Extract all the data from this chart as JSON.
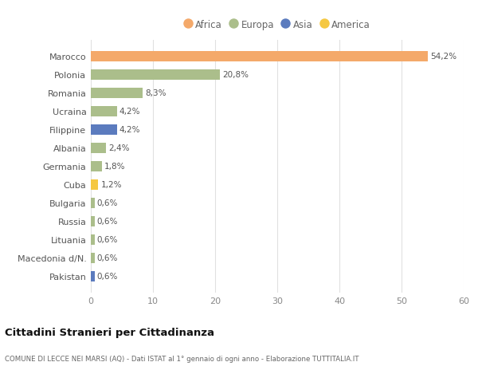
{
  "countries": [
    "Marocco",
    "Polonia",
    "Romania",
    "Ucraina",
    "Filippine",
    "Albania",
    "Germania",
    "Cuba",
    "Bulgaria",
    "Russia",
    "Lituania",
    "Macedonia d/N.",
    "Pakistan"
  ],
  "values": [
    54.2,
    20.8,
    8.3,
    4.2,
    4.2,
    2.4,
    1.8,
    1.2,
    0.6,
    0.6,
    0.6,
    0.6,
    0.6
  ],
  "labels": [
    "54,2%",
    "20,8%",
    "8,3%",
    "4,2%",
    "4,2%",
    "2,4%",
    "1,8%",
    "1,2%",
    "0,6%",
    "0,6%",
    "0,6%",
    "0,6%",
    "0,6%"
  ],
  "continents": [
    "Africa",
    "Europa",
    "Europa",
    "Europa",
    "Asia",
    "Europa",
    "Europa",
    "America",
    "Europa",
    "Europa",
    "Europa",
    "Europa",
    "Asia"
  ],
  "colors": {
    "Africa": "#F4A96A",
    "Europa": "#ABBE8B",
    "Asia": "#5B7BBE",
    "America": "#F5C842"
  },
  "legend_order": [
    "Africa",
    "Europa",
    "Asia",
    "America"
  ],
  "title": "Cittadini Stranieri per Cittadinanza",
  "subtitle": "COMUNE DI LECCE NEI MARSI (AQ) - Dati ISTAT al 1° gennaio di ogni anno - Elaborazione TUTTITALIA.IT",
  "xlim": [
    0,
    60
  ],
  "xticks": [
    0,
    10,
    20,
    30,
    40,
    50,
    60
  ],
  "background_color": "#ffffff",
  "grid_color": "#e0e0e0",
  "bar_height": 0.55
}
